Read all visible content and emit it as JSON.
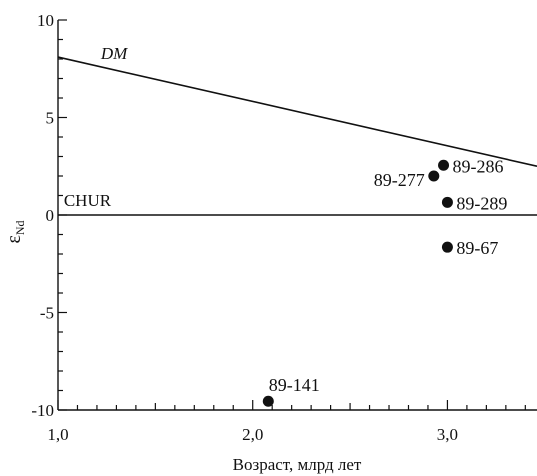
{
  "chart_data": {
    "type": "scatter",
    "title": "",
    "xlabel": "Возраст, млрд  лет",
    "ylabel_main": "ε",
    "ylabel_sub": "Nd",
    "xlim": [
      1.0,
      3.46
    ],
    "ylim": [
      -10,
      10
    ],
    "x_ticks": [
      {
        "value": 1.0,
        "label": "1,0"
      },
      {
        "value": 2.0,
        "label": "2,0"
      },
      {
        "value": 3.0,
        "label": "3,0"
      }
    ],
    "y_ticks": [
      {
        "value": 10,
        "label": "10"
      },
      {
        "value": 5,
        "label": "5"
      },
      {
        "value": 0,
        "label": "0"
      },
      {
        "value": -5,
        "label": "-5"
      },
      {
        "value": -10,
        "label": "-10"
      }
    ],
    "grid": false,
    "reference_lines": [
      {
        "name": "DM",
        "italic": true,
        "x": [
          1.0,
          3.46
        ],
        "y": [
          8.1,
          2.5
        ],
        "label_x": 1.22,
        "label_y": 8.0
      },
      {
        "name": "CHUR",
        "italic": false,
        "x": [
          1.0,
          3.46
        ],
        "y": [
          0,
          0
        ],
        "label_x": 1.03,
        "label_y": 0.45
      }
    ],
    "points": [
      {
        "label": "89-286",
        "x": 2.98,
        "y": 2.55,
        "label_side": "right"
      },
      {
        "label": "89-277",
        "x": 2.93,
        "y": 2.0,
        "label_side": "left"
      },
      {
        "label": "89-289",
        "x": 3.0,
        "y": 0.65,
        "label_side": "right"
      },
      {
        "label": "89-67",
        "x": 3.0,
        "y": -1.65,
        "label_side": "right"
      },
      {
        "label": "89-141",
        "x": 2.08,
        "y": -9.55,
        "label_side": "above"
      }
    ],
    "colors": {
      "axis": "#111111",
      "marker": "#111111",
      "background": "#ffffff"
    }
  }
}
